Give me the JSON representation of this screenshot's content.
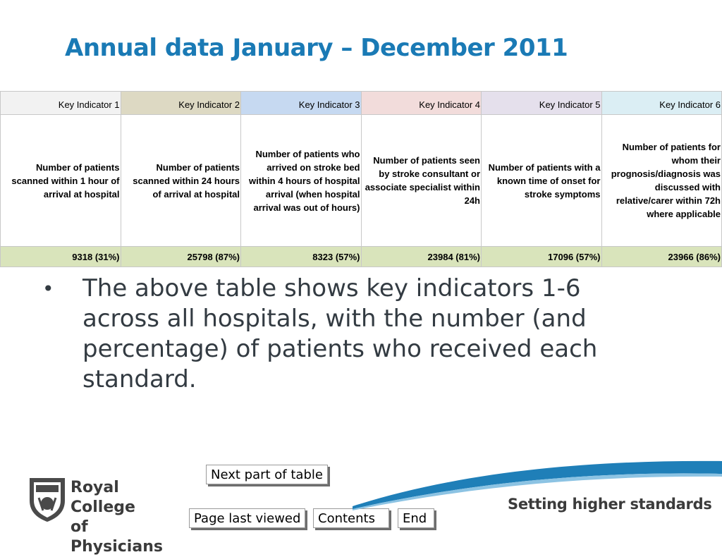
{
  "title": "Annual data January – December 2011",
  "table": {
    "columns": [
      {
        "header": "Key Indicator 1",
        "color": "#f2f2f2",
        "description": "Number of patients scanned within 1 hour of arrival at hospital",
        "value": "9318 (31%)"
      },
      {
        "header": "Key Indicator 2",
        "color": "#ddd9c3",
        "description": "Number of patients scanned within 24 hours of arrival at hospital",
        "value": "25798 (87%)"
      },
      {
        "header": "Key Indicator 3",
        "color": "#c6d9f1",
        "description": "Number of patients who arrived on stroke bed within 4 hours of hospital arrival (when hospital arrival was out of hours)",
        "value": "8323 (57%)"
      },
      {
        "header": "Key Indicator 4",
        "color": "#f2dcdb",
        "description": "Number of patients seen by stroke consultant or associate specialist within 24h",
        "value": "23984 (81%)"
      },
      {
        "header": "Key Indicator 5",
        "color": "#e5e0ec",
        "description": "Number of patients with a known time of onset for stroke symptoms",
        "value": "17096 (57%)"
      },
      {
        "header": "Key Indicator 6",
        "color": "#dbeef4",
        "description": "Number of patients for whom their prognosis/diagnosis was discussed with relative/carer within 72h where applicable",
        "value": "23966 (86%)"
      }
    ]
  },
  "bullet": {
    "symbol": "•",
    "text": "The above table shows key indicators 1-6 across all hospitals, with the number (and percentage) of patients who received each standard."
  },
  "nav": {
    "next": "Next part of table",
    "last_viewed": "Page last viewed",
    "contents": "Contents",
    "end": "End"
  },
  "footer": {
    "logo_line1": "Royal College",
    "logo_line2": "of Physicians",
    "tagline": "Setting higher standards"
  },
  "colors": {
    "title": "#1a7ab5",
    "swoosh": "#1f7fb8",
    "value_row": "#d9e4bb"
  }
}
